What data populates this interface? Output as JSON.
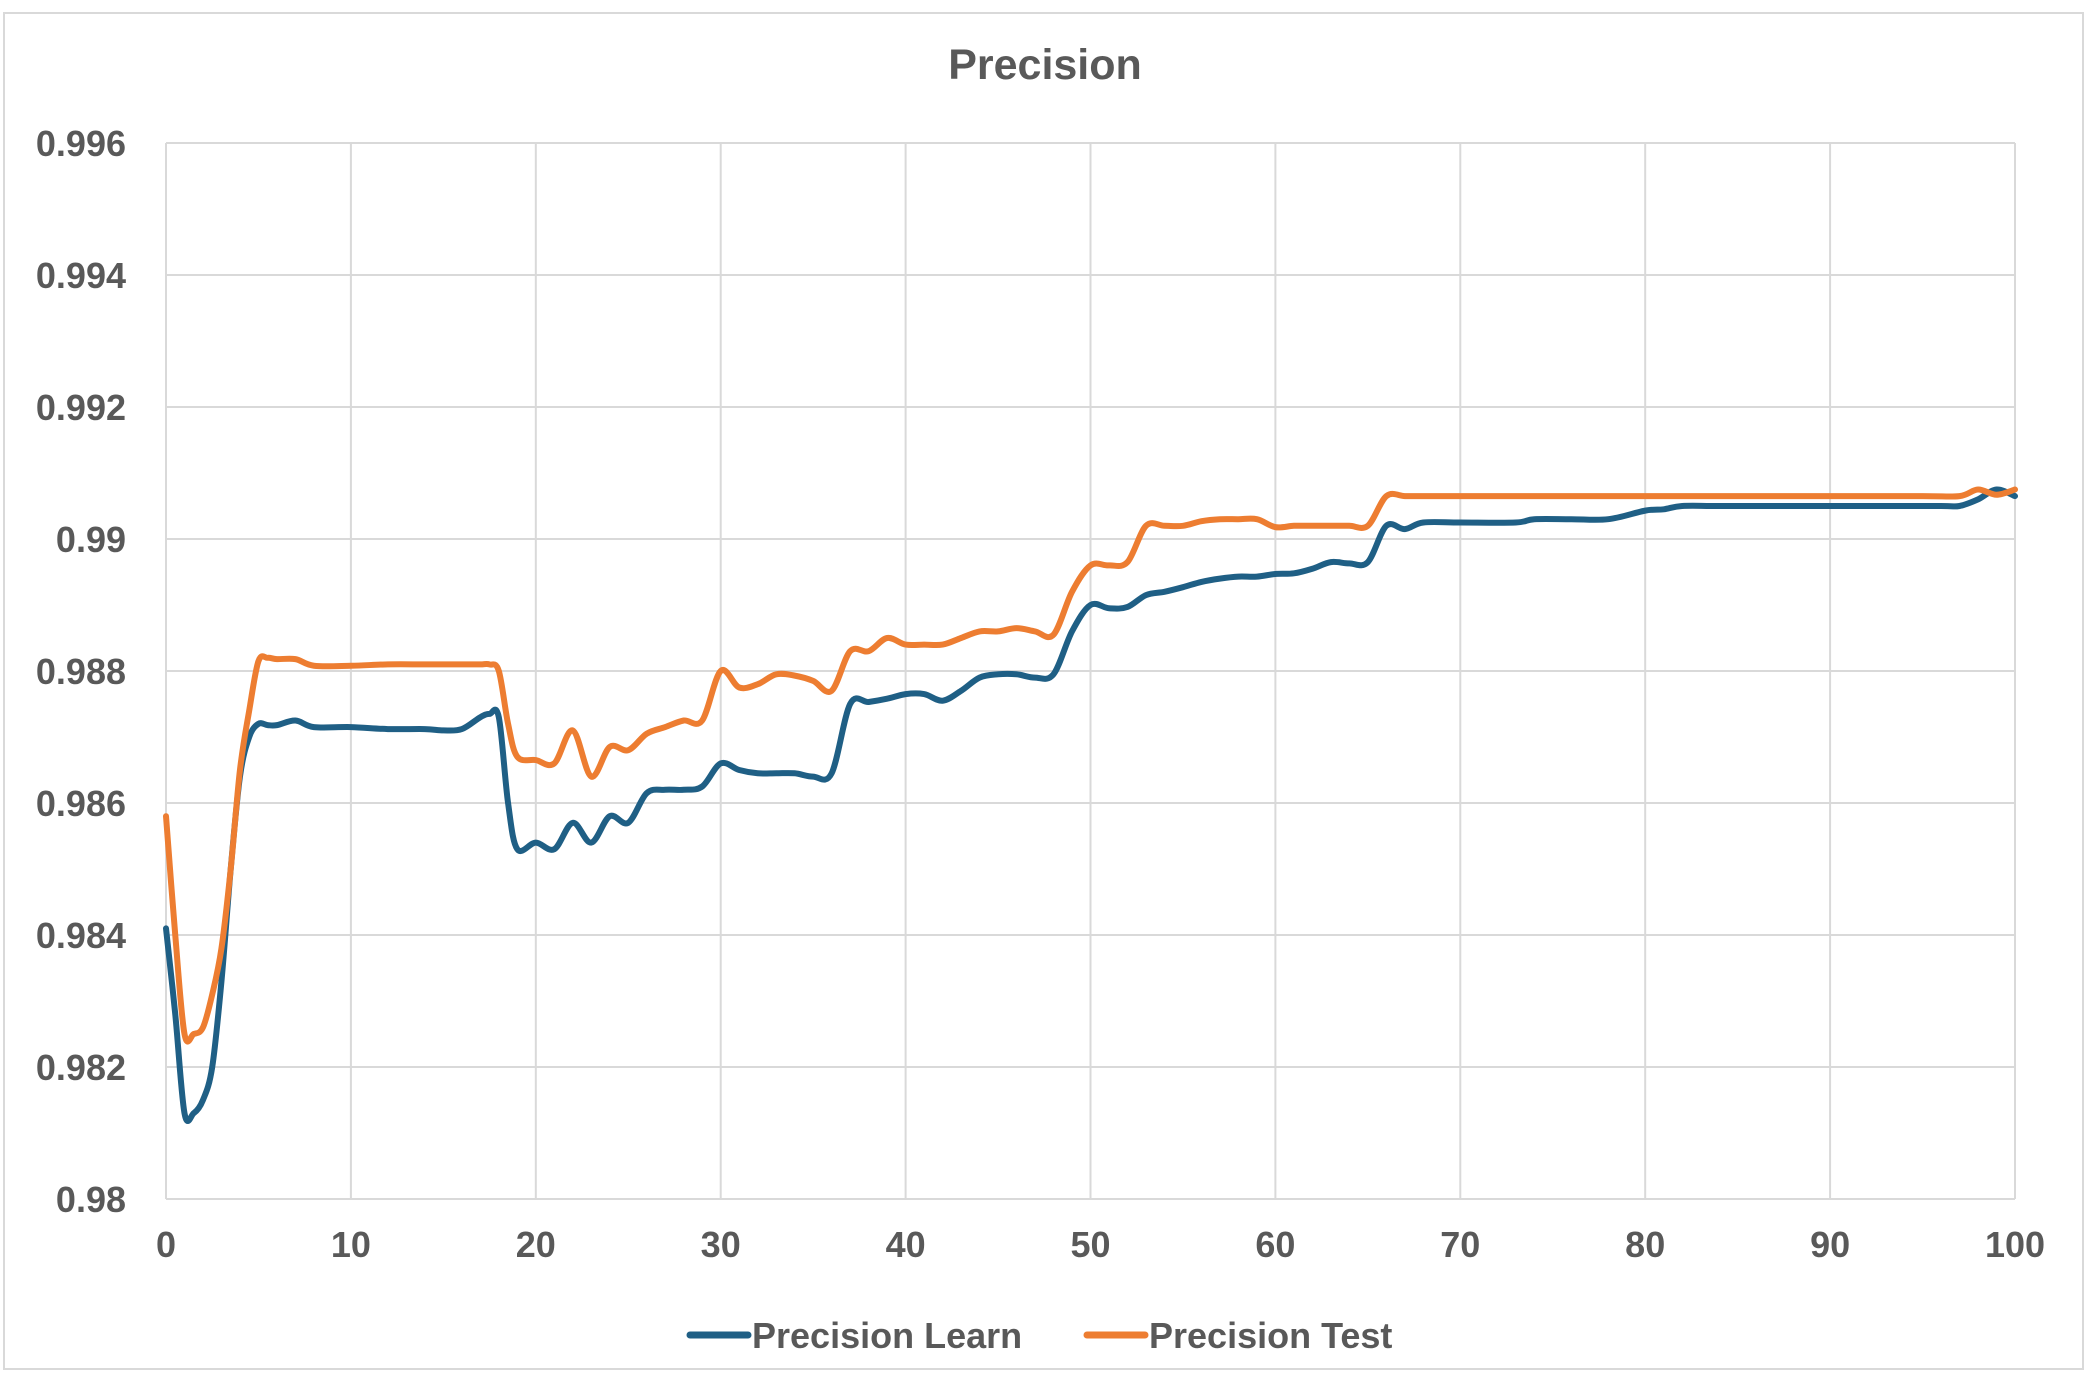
{
  "chart_data": {
    "type": "line",
    "title": "Precision",
    "xlabel": "",
    "ylabel": "",
    "xlim": [
      0,
      100
    ],
    "ylim": [
      0.98,
      0.996
    ],
    "x_ticks": [
      "0",
      "10",
      "20",
      "30",
      "40",
      "50",
      "60",
      "70",
      "80",
      "90",
      "100"
    ],
    "y_ticks": [
      "0.98",
      "0.982",
      "0.984",
      "0.986",
      "0.988",
      "0.99",
      "0.992",
      "0.994",
      "0.996"
    ],
    "grid": true,
    "legend_position": "bottom",
    "series": [
      {
        "name": "Precision Learn",
        "color": "#1f5f85",
        "x": [
          0,
          0.5,
          1,
          1.5,
          2,
          2.5,
          3,
          3.5,
          4,
          4.5,
          5,
          5.5,
          6,
          7,
          8,
          10,
          12,
          14,
          15,
          16,
          17,
          17.5,
          18,
          18.5,
          19,
          20,
          21,
          22,
          23,
          24,
          25,
          26,
          27,
          28,
          29,
          30,
          31,
          32,
          33,
          34,
          35,
          36,
          37,
          38,
          39,
          40,
          41,
          42,
          43,
          44,
          45,
          46,
          47,
          48,
          49,
          50,
          51,
          52,
          53,
          54,
          55,
          56,
          57,
          58,
          59,
          60,
          61,
          62,
          63,
          64,
          65,
          66,
          67,
          68,
          70,
          73,
          74,
          76,
          78,
          80,
          81,
          82,
          84,
          88,
          92,
          96,
          97,
          98,
          99,
          100
        ],
        "y": [
          0.9841,
          0.9828,
          0.9813,
          0.9813,
          0.9815,
          0.982,
          0.9833,
          0.985,
          0.9864,
          0.987,
          0.9872,
          0.98718,
          0.98718,
          0.98725,
          0.98715,
          0.98715,
          0.98712,
          0.98712,
          0.9871,
          0.98712,
          0.9873,
          0.98735,
          0.9873,
          0.986,
          0.9853,
          0.9854,
          0.9853,
          0.9857,
          0.9854,
          0.9858,
          0.9857,
          0.98615,
          0.9862,
          0.9862,
          0.98625,
          0.9866,
          0.9865,
          0.98645,
          0.98645,
          0.98645,
          0.9864,
          0.98645,
          0.9875,
          0.98753,
          0.98758,
          0.98765,
          0.98765,
          0.98755,
          0.9877,
          0.9879,
          0.98795,
          0.98795,
          0.9879,
          0.98795,
          0.9886,
          0.989,
          0.98895,
          0.98897,
          0.98915,
          0.9892,
          0.98927,
          0.98935,
          0.9894,
          0.98943,
          0.98943,
          0.98947,
          0.98948,
          0.98955,
          0.98965,
          0.98963,
          0.98965,
          0.9902,
          0.99015,
          0.99025,
          0.99025,
          0.99025,
          0.9903,
          0.9903,
          0.9903,
          0.99043,
          0.99045,
          0.9905,
          0.9905,
          0.9905,
          0.9905,
          0.9905,
          0.9905,
          0.9906,
          0.99075,
          0.99065
        ]
      },
      {
        "name": "Precision Test",
        "color": "#ed7d31",
        "x": [
          0,
          0.5,
          1,
          1.5,
          2,
          2.5,
          3,
          3.5,
          4,
          4.5,
          5,
          5.5,
          6,
          7,
          8,
          10,
          12,
          14,
          16,
          17,
          17.5,
          18,
          18.5,
          19,
          20,
          21,
          22,
          23,
          24,
          25,
          26,
          27,
          28,
          29,
          30,
          31,
          32,
          33,
          34,
          35,
          36,
          37,
          38,
          39,
          40,
          41,
          42,
          43,
          44,
          45,
          46,
          47,
          48,
          49,
          50,
          51,
          52,
          53,
          54,
          55,
          56,
          57,
          58,
          59,
          60,
          61,
          62,
          63,
          64,
          65,
          66,
          67,
          68,
          70,
          75,
          80,
          85,
          90,
          95,
          97,
          98,
          99,
          100
        ],
        "y": [
          0.9858,
          0.984,
          0.9825,
          0.9825,
          0.9826,
          0.9831,
          0.9838,
          0.985,
          0.9865,
          0.9874,
          0.98815,
          0.9882,
          0.98818,
          0.98818,
          0.98808,
          0.98808,
          0.9881,
          0.9881,
          0.9881,
          0.9881,
          0.9881,
          0.988,
          0.9872,
          0.9867,
          0.98665,
          0.9866,
          0.9871,
          0.9864,
          0.98685,
          0.9868,
          0.98705,
          0.98715,
          0.98725,
          0.98725,
          0.988,
          0.98775,
          0.9878,
          0.98795,
          0.98793,
          0.98785,
          0.9877,
          0.9883,
          0.9883,
          0.9885,
          0.9884,
          0.9884,
          0.9884,
          0.9885,
          0.9886,
          0.9886,
          0.98865,
          0.9886,
          0.98855,
          0.9892,
          0.9896,
          0.9896,
          0.98965,
          0.9902,
          0.9902,
          0.9902,
          0.99027,
          0.9903,
          0.9903,
          0.9903,
          0.99018,
          0.9902,
          0.9902,
          0.9902,
          0.9902,
          0.9902,
          0.99065,
          0.99065,
          0.99065,
          0.99065,
          0.99065,
          0.99065,
          0.99065,
          0.99065,
          0.99065,
          0.99065,
          0.99075,
          0.99067,
          0.99075
        ]
      }
    ]
  }
}
